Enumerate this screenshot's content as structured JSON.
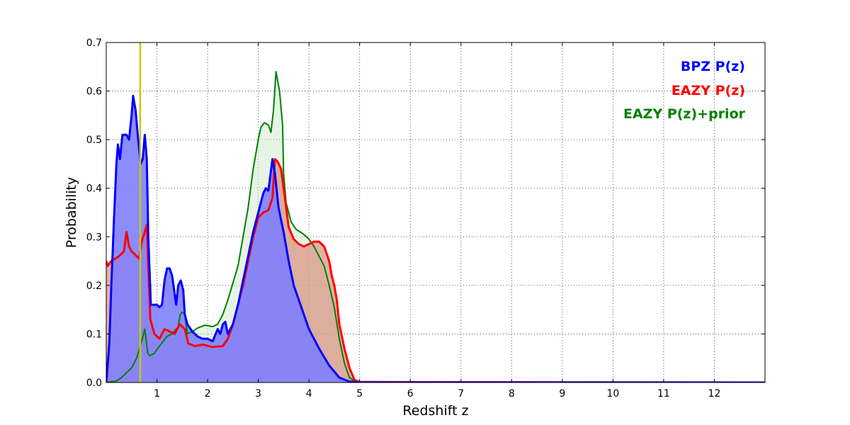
{
  "chart_data": {
    "type": "area",
    "title": "",
    "xlabel": "Redshift z",
    "ylabel": "Probability",
    "xlim": [
      0,
      13
    ],
    "ylim": [
      0,
      0.7
    ],
    "x_ticks": [
      1,
      2,
      3,
      4,
      5,
      6,
      7,
      8,
      9,
      10,
      11,
      12
    ],
    "y_ticks": [
      0.0,
      0.1,
      0.2,
      0.3,
      0.4,
      0.5,
      0.6,
      0.7
    ],
    "y_tick_labels": [
      "0.0",
      "0.1",
      "0.2",
      "0.3",
      "0.4",
      "0.5",
      "0.6",
      "0.7"
    ],
    "grid": true,
    "legend_position": "top-right",
    "reference_line": {
      "x": 0.67,
      "color": "#c8c800"
    },
    "series": [
      {
        "name": "EAZY P(z)+prior",
        "color": "#008000",
        "fill": "#c8e6c8",
        "fill_opacity": 0.45,
        "line_width": 2,
        "points": [
          [
            0,
            0
          ],
          [
            0.2,
            0.003
          ],
          [
            0.3,
            0.01
          ],
          [
            0.4,
            0.02
          ],
          [
            0.5,
            0.03
          ],
          [
            0.6,
            0.05
          ],
          [
            0.7,
            0.085
          ],
          [
            0.76,
            0.11
          ],
          [
            0.82,
            0.06
          ],
          [
            0.86,
            0.055
          ],
          [
            0.95,
            0.06
          ],
          [
            1.05,
            0.075
          ],
          [
            1.2,
            0.095
          ],
          [
            1.3,
            0.1
          ],
          [
            1.42,
            0.115
          ],
          [
            1.46,
            0.14
          ],
          [
            1.5,
            0.145
          ],
          [
            1.55,
            0.14
          ],
          [
            1.6,
            0.1
          ],
          [
            1.7,
            0.105
          ],
          [
            1.8,
            0.112
          ],
          [
            1.95,
            0.118
          ],
          [
            2.1,
            0.115
          ],
          [
            2.2,
            0.12
          ],
          [
            2.3,
            0.14
          ],
          [
            2.4,
            0.17
          ],
          [
            2.5,
            0.205
          ],
          [
            2.6,
            0.24
          ],
          [
            2.7,
            0.3
          ],
          [
            2.8,
            0.36
          ],
          [
            2.9,
            0.44
          ],
          [
            3.0,
            0.5
          ],
          [
            3.05,
            0.525
          ],
          [
            3.12,
            0.535
          ],
          [
            3.2,
            0.53
          ],
          [
            3.25,
            0.515
          ],
          [
            3.3,
            0.56
          ],
          [
            3.35,
            0.64
          ],
          [
            3.42,
            0.6
          ],
          [
            3.48,
            0.53
          ],
          [
            3.5,
            0.43
          ],
          [
            3.55,
            0.37
          ],
          [
            3.65,
            0.33
          ],
          [
            3.75,
            0.315
          ],
          [
            3.9,
            0.305
          ],
          [
            4.0,
            0.295
          ],
          [
            4.1,
            0.28
          ],
          [
            4.2,
            0.26
          ],
          [
            4.3,
            0.24
          ],
          [
            4.4,
            0.2
          ],
          [
            4.5,
            0.155
          ],
          [
            4.6,
            0.09
          ],
          [
            4.7,
            0.04
          ],
          [
            4.8,
            0.01
          ],
          [
            4.9,
            0.003
          ],
          [
            5.0,
            0.001
          ],
          [
            13,
            0
          ]
        ]
      },
      {
        "name": "EAZY P(z)",
        "color": "#ff0000",
        "fill": "#d98f7f",
        "fill_opacity": 0.7,
        "line_width": 3,
        "points": [
          [
            0,
            0.25
          ],
          [
            0.03,
            0.24
          ],
          [
            0.1,
            0.25
          ],
          [
            0.25,
            0.26
          ],
          [
            0.35,
            0.27
          ],
          [
            0.4,
            0.31
          ],
          [
            0.45,
            0.28
          ],
          [
            0.5,
            0.27
          ],
          [
            0.6,
            0.26
          ],
          [
            0.65,
            0.255
          ],
          [
            0.7,
            0.29
          ],
          [
            0.76,
            0.31
          ],
          [
            0.8,
            0.325
          ],
          [
            0.83,
            0.24
          ],
          [
            0.87,
            0.13
          ],
          [
            0.95,
            0.1
          ],
          [
            1.05,
            0.09
          ],
          [
            1.15,
            0.11
          ],
          [
            1.25,
            0.105
          ],
          [
            1.35,
            0.1
          ],
          [
            1.45,
            0.12
          ],
          [
            1.55,
            0.11
          ],
          [
            1.62,
            0.08
          ],
          [
            1.75,
            0.075
          ],
          [
            1.9,
            0.078
          ],
          [
            2.1,
            0.073
          ],
          [
            2.3,
            0.075
          ],
          [
            2.4,
            0.09
          ],
          [
            2.5,
            0.12
          ],
          [
            2.6,
            0.16
          ],
          [
            2.7,
            0.2
          ],
          [
            2.8,
            0.25
          ],
          [
            2.9,
            0.3
          ],
          [
            3.0,
            0.34
          ],
          [
            3.1,
            0.35
          ],
          [
            3.2,
            0.355
          ],
          [
            3.28,
            0.38
          ],
          [
            3.33,
            0.46
          ],
          [
            3.38,
            0.455
          ],
          [
            3.45,
            0.44
          ],
          [
            3.5,
            0.4
          ],
          [
            3.6,
            0.32
          ],
          [
            3.7,
            0.295
          ],
          [
            3.8,
            0.285
          ],
          [
            3.9,
            0.28
          ],
          [
            4.0,
            0.285
          ],
          [
            4.1,
            0.29
          ],
          [
            4.2,
            0.29
          ],
          [
            4.3,
            0.28
          ],
          [
            4.4,
            0.25
          ],
          [
            4.45,
            0.22
          ],
          [
            4.5,
            0.2
          ],
          [
            4.55,
            0.17
          ],
          [
            4.6,
            0.12
          ],
          [
            4.7,
            0.07
          ],
          [
            4.8,
            0.03
          ],
          [
            4.9,
            0.005
          ],
          [
            5.0,
            0.001
          ],
          [
            13,
            0
          ]
        ]
      },
      {
        "name": "BPZ P(z)",
        "color": "#0000ff",
        "fill": "#7f7fff",
        "fill_opacity": 0.9,
        "line_width": 3,
        "points": [
          [
            0,
            0
          ],
          [
            0.06,
            0.08
          ],
          [
            0.1,
            0.2
          ],
          [
            0.15,
            0.33
          ],
          [
            0.2,
            0.45
          ],
          [
            0.23,
            0.49
          ],
          [
            0.27,
            0.46
          ],
          [
            0.32,
            0.51
          ],
          [
            0.4,
            0.51
          ],
          [
            0.45,
            0.5
          ],
          [
            0.5,
            0.55
          ],
          [
            0.53,
            0.59
          ],
          [
            0.58,
            0.56
          ],
          [
            0.63,
            0.5
          ],
          [
            0.68,
            0.45
          ],
          [
            0.72,
            0.46
          ],
          [
            0.76,
            0.51
          ],
          [
            0.8,
            0.46
          ],
          [
            0.83,
            0.3
          ],
          [
            0.88,
            0.16
          ],
          [
            1.0,
            0.16
          ],
          [
            1.05,
            0.155
          ],
          [
            1.1,
            0.16
          ],
          [
            1.15,
            0.21
          ],
          [
            1.2,
            0.235
          ],
          [
            1.25,
            0.235
          ],
          [
            1.3,
            0.22
          ],
          [
            1.38,
            0.16
          ],
          [
            1.42,
            0.2
          ],
          [
            1.47,
            0.21
          ],
          [
            1.52,
            0.19
          ],
          [
            1.55,
            0.14
          ],
          [
            1.6,
            0.12
          ],
          [
            1.7,
            0.105
          ],
          [
            1.8,
            0.095
          ],
          [
            1.9,
            0.09
          ],
          [
            2.0,
            0.09
          ],
          [
            2.1,
            0.085
          ],
          [
            2.2,
            0.11
          ],
          [
            2.25,
            0.1
          ],
          [
            2.3,
            0.12
          ],
          [
            2.35,
            0.125
          ],
          [
            2.4,
            0.1
          ],
          [
            2.5,
            0.12
          ],
          [
            2.6,
            0.16
          ],
          [
            2.7,
            0.21
          ],
          [
            2.8,
            0.26
          ],
          [
            2.9,
            0.31
          ],
          [
            3.0,
            0.35
          ],
          [
            3.1,
            0.39
          ],
          [
            3.15,
            0.4
          ],
          [
            3.2,
            0.395
          ],
          [
            3.28,
            0.46
          ],
          [
            3.33,
            0.43
          ],
          [
            3.4,
            0.36
          ],
          [
            3.5,
            0.31
          ],
          [
            3.6,
            0.25
          ],
          [
            3.7,
            0.2
          ],
          [
            3.8,
            0.17
          ],
          [
            3.9,
            0.14
          ],
          [
            4.0,
            0.11
          ],
          [
            4.2,
            0.07
          ],
          [
            4.4,
            0.035
          ],
          [
            4.6,
            0.01
          ],
          [
            4.8,
            0.002
          ],
          [
            5.0,
            0
          ],
          [
            13,
            0
          ]
        ]
      }
    ]
  },
  "legend": [
    {
      "label": "BPZ P(z)",
      "color": "#0000ff"
    },
    {
      "label": "EAZY P(z)",
      "color": "#ff0000"
    },
    {
      "label": "EAZY P(z)+prior",
      "color": "#008000"
    }
  ]
}
